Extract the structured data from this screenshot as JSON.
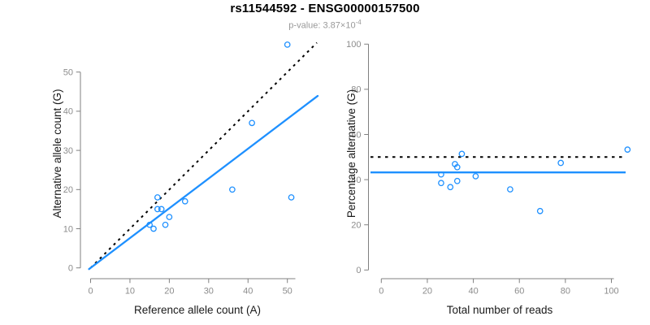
{
  "header": {
    "title": "rs11544592 - ENSG00000157500",
    "subtitle_prefix": "p-value: 3.87×10",
    "subtitle_exponent": "-4"
  },
  "colors": {
    "accent_blue": "#1E90FF",
    "identity_black": "#000000",
    "axis_gray": "#808080",
    "tick_label_gray": "#8C8C8C",
    "axis_title_color": "#1A1A1A",
    "subtitle_gray": "#999999"
  },
  "chart_data": [
    {
      "type": "scatter",
      "name": "allele-counts-scatter",
      "xlabel": "Reference allele count (A)",
      "ylabel": "Alternative allele count (G)",
      "xlim": [
        0,
        57.5
      ],
      "ylim": [
        0,
        58.5
      ],
      "xticks": [
        0,
        10,
        20,
        30,
        40,
        50
      ],
      "yticks": [
        0,
        10,
        20,
        30,
        40,
        50
      ],
      "grid": false,
      "points": [
        [
          15,
          11
        ],
        [
          16,
          10
        ],
        [
          17,
          15
        ],
        [
          17,
          18
        ],
        [
          18,
          15
        ],
        [
          19,
          11
        ],
        [
          20,
          13
        ],
        [
          24,
          17
        ],
        [
          36,
          20
        ],
        [
          41,
          37
        ],
        [
          50,
          57
        ],
        [
          51,
          18
        ]
      ],
      "identity_line": {
        "style": "dotted",
        "slope": 1,
        "intercept": 0
      },
      "fit_line": {
        "style": "solid",
        "slope": 0.761,
        "intercept": 0
      }
    },
    {
      "type": "scatter",
      "name": "percentage-vs-reads-scatter",
      "xlabel": "Total number of reads",
      "ylabel": "Percentage alternative (G)",
      "xlim": [
        0,
        108
      ],
      "ylim": [
        0,
        100
      ],
      "xticks": [
        0,
        20,
        40,
        60,
        80,
        100
      ],
      "yticks": [
        0,
        20,
        40,
        60,
        80,
        100
      ],
      "grid": false,
      "points": [
        [
          26,
          42.3
        ],
        [
          26,
          38.5
        ],
        [
          30,
          36.7
        ],
        [
          32,
          46.9
        ],
        [
          33,
          45.5
        ],
        [
          33,
          39.4
        ],
        [
          35,
          51.4
        ],
        [
          41,
          41.5
        ],
        [
          56,
          35.7
        ],
        [
          69,
          26.1
        ],
        [
          78,
          47.4
        ],
        [
          107,
          53.3
        ]
      ],
      "reference_hline": {
        "style": "dotted",
        "y": 50
      },
      "fit_hline": {
        "style": "solid",
        "y": 43.2
      }
    }
  ]
}
